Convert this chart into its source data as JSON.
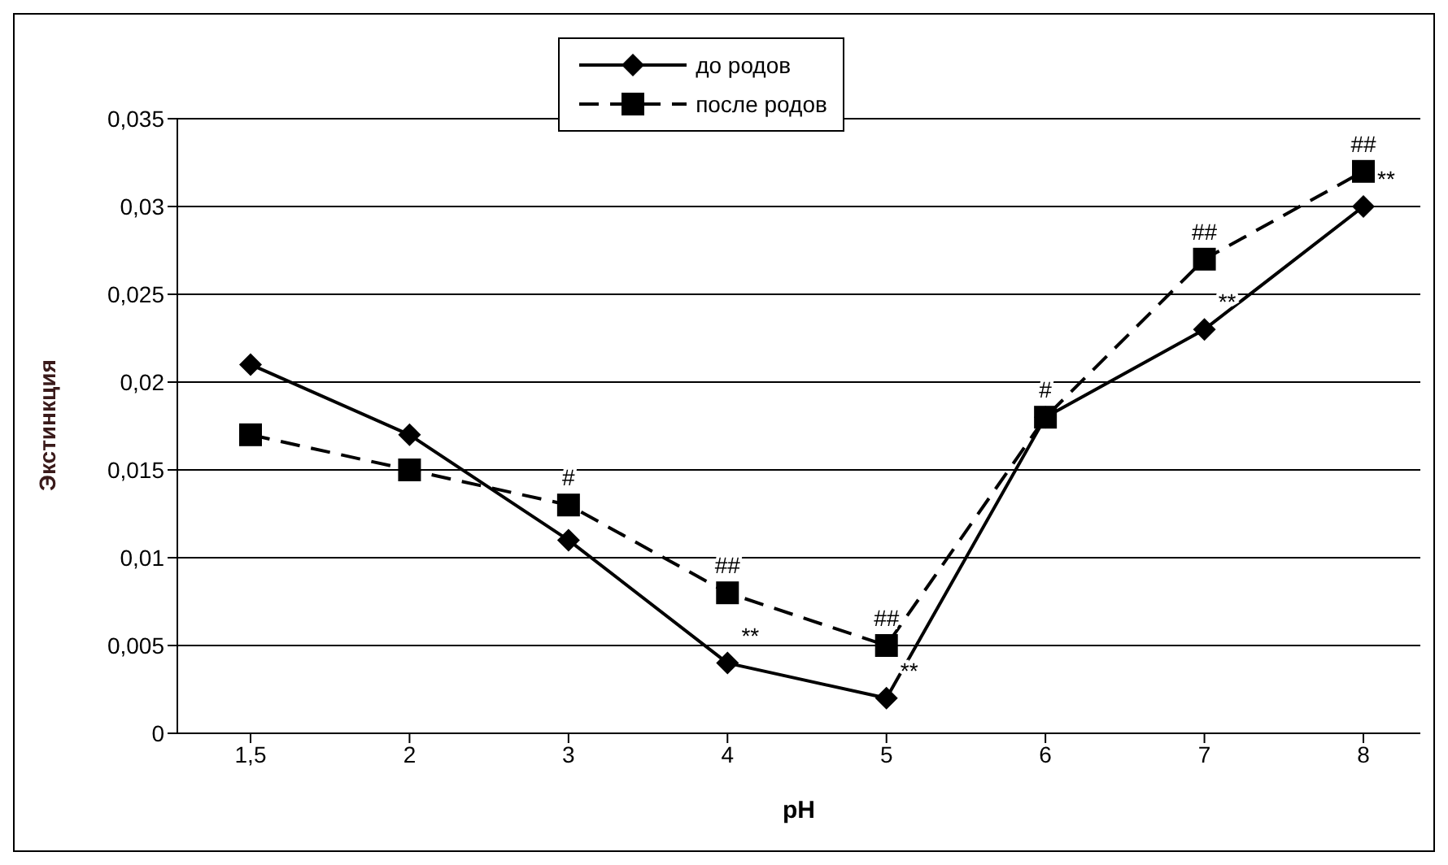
{
  "chart_data": {
    "type": "line",
    "xlabel": "pH",
    "ylabel": "Экстинкция",
    "categories": [
      "1,5",
      "2",
      "3",
      "4",
      "5",
      "6",
      "7",
      "8"
    ],
    "series": [
      {
        "name": "до родов",
        "color": "#000000",
        "marker": "diamond",
        "line_style": "solid",
        "values": [
          0.021,
          0.017,
          0.011,
          0.004,
          0.002,
          0.018,
          0.023,
          0.03
        ]
      },
      {
        "name": "после родов",
        "color": "#000000",
        "marker": "square",
        "line_style": "dashed",
        "values": [
          0.017,
          0.015,
          0.013,
          0.008,
          0.005,
          0.018,
          0.027,
          0.032
        ]
      }
    ],
    "ylim": [
      0,
      0.035
    ],
    "yticks": [
      0,
      {
        "value": 0.005,
        "label": "0,005"
      },
      {
        "value": 0.01,
        "label": "0,01"
      },
      {
        "value": 0.015,
        "label": "0,015"
      },
      {
        "value": 0.02,
        "label": "0,02"
      },
      {
        "value": 0.025,
        "label": "0,025"
      },
      {
        "value": 0.03,
        "label": "0,03"
      },
      {
        "value": 0.035,
        "label": "0,035"
      }
    ],
    "grid": "y",
    "legend": "top",
    "annotations": [
      {
        "text": "#",
        "x": "3",
        "y": 0.013
      },
      {
        "text": "##",
        "x": "4",
        "y": 0.008
      },
      {
        "text": "**",
        "x": "4",
        "y": 0.004
      },
      {
        "text": "##",
        "x": "5",
        "y": 0.005
      },
      {
        "text": "**",
        "x": "5",
        "y": 0.002
      },
      {
        "text": "#",
        "x": "6",
        "y": 0.018
      },
      {
        "text": "##",
        "x": "7",
        "y": 0.027
      },
      {
        "text": "**",
        "x": "7",
        "y": 0.023
      },
      {
        "text": "##",
        "x": "8",
        "y": 0.032
      },
      {
        "text": "**",
        "x": "8",
        "y": 0.03
      }
    ]
  }
}
